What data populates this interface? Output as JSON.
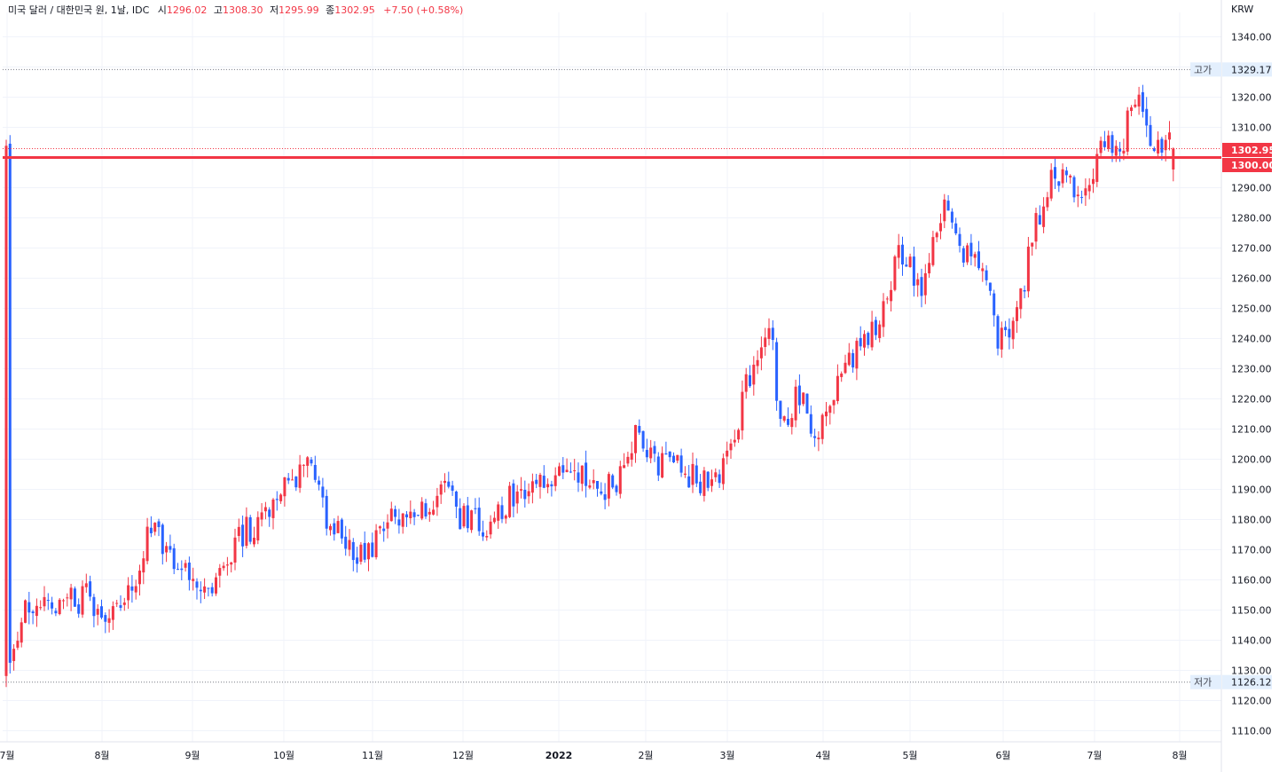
{
  "legend": {
    "symbol": "미국 달러 / 대한민국 원, 1날, IDC",
    "open_label": "시",
    "open": "1296.02",
    "high_label": "고",
    "high": "1308.30",
    "low_label": "저",
    "low": "1295.99",
    "close_label": "종",
    "close": "1302.95",
    "change": "+7.50 (+0.58%)"
  },
  "colors": {
    "up": "#f23645",
    "down": "#2962ff",
    "line": "#f23645",
    "grid": "#f0f3fa",
    "axis_text": "#131722"
  },
  "chart_data": {
    "type": "candlestick",
    "currency": "KRW",
    "ylim": [
      1104,
      1347
    ],
    "y_ticks": [
      1110,
      1120,
      1130,
      1140,
      1150,
      1160,
      1170,
      1180,
      1190,
      1200,
      1210,
      1220,
      1230,
      1240,
      1250,
      1260,
      1270,
      1280,
      1290,
      1300,
      1310,
      1320,
      1330,
      1340
    ],
    "x_tick_labels": [
      "7월",
      "8월",
      "9월",
      "10월",
      "11월",
      "12월",
      "2022",
      "2월",
      "3월",
      "4월",
      "5월",
      "6월",
      "7월",
      "8월"
    ],
    "x_tick_bold": [
      false,
      false,
      false,
      false,
      false,
      false,
      true,
      false,
      false,
      false,
      false,
      false,
      false,
      false
    ],
    "high_marker": {
      "label": "고가",
      "value": "1329.17"
    },
    "low_marker": {
      "label": "저가",
      "value": "1126.12"
    },
    "last_price": "1302.95",
    "horizontal_line": {
      "value": 1300,
      "label": "1300.00"
    },
    "monthly_anchors": [
      {
        "month": "2021-07",
        "value": 1131
      },
      {
        "month": "2021-08",
        "value": 1155
      },
      {
        "month": "2021-09",
        "value": 1168
      },
      {
        "month": "2021-10",
        "value": 1190
      },
      {
        "month": "2021-11",
        "value": 1172
      },
      {
        "month": "2021-12",
        "value": 1184
      },
      {
        "month": "2022-01",
        "value": 1196
      },
      {
        "month": "2022-02",
        "value": 1200
      },
      {
        "month": "2022-03",
        "value": 1200
      },
      {
        "month": "2022-04",
        "value": 1220
      },
      {
        "month": "2022-05",
        "value": 1262
      },
      {
        "month": "2022-06",
        "value": 1248
      },
      {
        "month": "2022-07",
        "value": 1295
      },
      {
        "month": "2022-07-end",
        "value": 1303
      }
    ]
  }
}
